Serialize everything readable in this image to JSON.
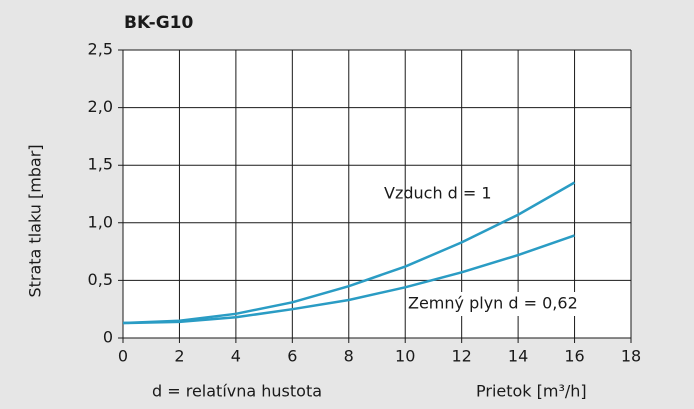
{
  "chart_data": {
    "type": "line",
    "title": "BK-G10",
    "y_label": "Strata tlaku [mbar]",
    "x_label": "Prietok [m³/h]",
    "note": "d = relatívna hustota",
    "x": [
      0,
      2,
      4,
      6,
      8,
      10,
      12,
      14,
      16
    ],
    "series": [
      {
        "name": "Vzduch d = 1",
        "color": "#2a9cc4",
        "values": [
          0.13,
          0.15,
          0.21,
          0.31,
          0.45,
          0.62,
          0.83,
          1.07,
          1.35
        ]
      },
      {
        "name": "Zemný plyn d = 0,62",
        "color": "#2a9cc4",
        "values": [
          0.13,
          0.14,
          0.18,
          0.25,
          0.33,
          0.44,
          0.57,
          0.72,
          0.89
        ]
      }
    ],
    "xlim": [
      0,
      18
    ],
    "xticks": [
      0,
      2,
      4,
      6,
      8,
      10,
      12,
      14,
      16,
      18
    ],
    "ylim": [
      0,
      2.5
    ],
    "yticks": [
      0,
      {
        "value": 0.5,
        "label": "0,5"
      },
      {
        "value": 1,
        "label": "1,0"
      },
      {
        "value": 1.5,
        "label": "1,5"
      },
      {
        "value": 2,
        "label": "2,0"
      },
      {
        "value": 2.5,
        "label": "2,5"
      }
    ],
    "grid": true
  }
}
